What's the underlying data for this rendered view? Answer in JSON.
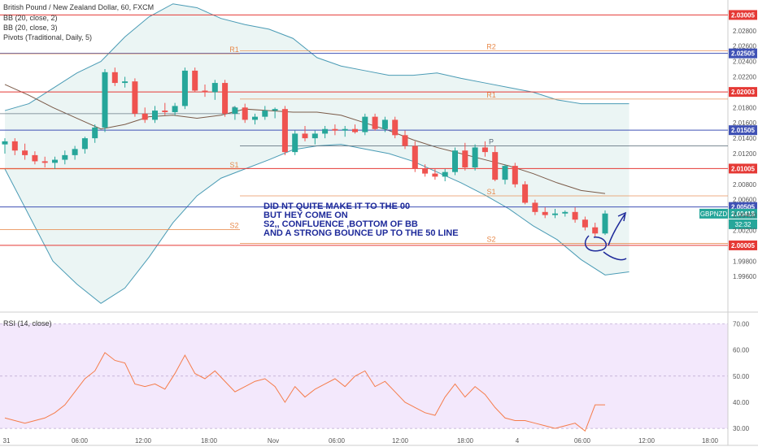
{
  "legend": {
    "symbol": "British Pound / New Zealand Dollar, 60, FXCM",
    "bb1": "BB (20, close, 2)",
    "bb2": "BB (20, close, 3)",
    "pivots": "Pivots (Traditional, Daily, 5)",
    "rsi": "RSI (14, close)"
  },
  "annotation": [
    "DID NT QUITE MAKE IT TO THE 00",
    "BUT HEY COME ON",
    "S2,, CONFLUENCE ,BOTTOM OF BB",
    "AND A STRONG BOUNCE UP TO THE 50 LINE"
  ],
  "colors": {
    "bull": "#26a69a",
    "bear": "#ef5350",
    "red_line": "#e53935",
    "blue_line": "#3f51b5",
    "pivot": "#e8894a",
    "bb_band": "#4a9bb5",
    "bb_fill": "#e6f3f1",
    "ma": "#7a5a48",
    "rsi_line": "#f57c4a",
    "rsi_bg": "#f3e8fc"
  },
  "chart_data": [
    {
      "type": "candlestick",
      "symbol": "GBPNZD",
      "ylim": [
        1.992,
        2.032
      ],
      "yticks": [
        1.996,
        1.998,
        2.002,
        2.004,
        2.006,
        2.008,
        2.012,
        2.014,
        2.016,
        2.018,
        2.022,
        2.024,
        2.026,
        2.028
      ],
      "x_labels": [
        "31",
        "06:00",
        "12:00",
        "18:00",
        "Nov",
        "06:00",
        "12:00",
        "18:00",
        "4",
        "06:00",
        "12:00",
        "18:00"
      ],
      "current_price": "2.00418",
      "price_tag_label": "GBPNZD",
      "countdown": "32:32",
      "horizontal_lines": [
        {
          "value": 2.03005,
          "label": "2.03005",
          "color": "red"
        },
        {
          "value": 2.02505,
          "label": "2.02505",
          "color": "blue"
        },
        {
          "value": 2.02003,
          "label": "2.02003",
          "color": "red"
        },
        {
          "value": 2.01505,
          "label": "2.01505",
          "color": "blue"
        },
        {
          "value": 2.01005,
          "label": "2.01005",
          "color": "red"
        },
        {
          "value": 2.00505,
          "label": "2.00505",
          "color": "blue"
        },
        {
          "value": 2.00005,
          "label": "2.00005",
          "color": "red"
        }
      ],
      "pivots": [
        {
          "label": "R1",
          "value": 2.025,
          "day": 1
        },
        {
          "label": "P",
          "value": 2.0172,
          "day": 1
        },
        {
          "label": "S1",
          "value": 2.01,
          "day": 1
        },
        {
          "label": "S2",
          "value": 2.0021,
          "day": 1
        },
        {
          "label": "R2",
          "value": 2.0254,
          "day": 2
        },
        {
          "label": "R1",
          "value": 2.0191,
          "day": 2
        },
        {
          "label": "P",
          "value": 2.013,
          "day": 2
        },
        {
          "label": "S1",
          "value": 2.0065,
          "day": 2
        },
        {
          "label": "S2",
          "value": 2.0003,
          "day": 2
        }
      ],
      "candles": [
        {
          "o": 2.0132,
          "h": 2.014,
          "l": 2.012,
          "c": 2.0136
        },
        {
          "o": 2.0136,
          "h": 2.014,
          "l": 2.0118,
          "c": 2.0124
        },
        {
          "o": 2.0124,
          "h": 2.0133,
          "l": 2.0112,
          "c": 2.0118
        },
        {
          "o": 2.0118,
          "h": 2.0123,
          "l": 2.0106,
          "c": 2.011
        },
        {
          "o": 2.011,
          "h": 2.0116,
          "l": 2.0102,
          "c": 2.0108
        },
        {
          "o": 2.0108,
          "h": 2.0116,
          "l": 2.01,
          "c": 2.0112
        },
        {
          "o": 2.0112,
          "h": 2.0124,
          "l": 2.0106,
          "c": 2.0118
        },
        {
          "o": 2.0118,
          "h": 2.013,
          "l": 2.0112,
          "c": 2.0126
        },
        {
          "o": 2.0126,
          "h": 2.0142,
          "l": 2.012,
          "c": 2.014
        },
        {
          "o": 2.014,
          "h": 2.0158,
          "l": 2.0134,
          "c": 2.0154
        },
        {
          "o": 2.0154,
          "h": 2.023,
          "l": 2.0148,
          "c": 2.0226
        },
        {
          "o": 2.0226,
          "h": 2.0232,
          "l": 2.0208,
          "c": 2.0212
        },
        {
          "o": 2.0212,
          "h": 2.022,
          "l": 2.0206,
          "c": 2.0214
        },
        {
          "o": 2.0214,
          "h": 2.0218,
          "l": 2.0168,
          "c": 2.0172
        },
        {
          "o": 2.0172,
          "h": 2.018,
          "l": 2.016,
          "c": 2.0164
        },
        {
          "o": 2.0164,
          "h": 2.0182,
          "l": 2.016,
          "c": 2.0176
        },
        {
          "o": 2.0176,
          "h": 2.0186,
          "l": 2.017,
          "c": 2.0174
        },
        {
          "o": 2.0174,
          "h": 2.0186,
          "l": 2.017,
          "c": 2.0182
        },
        {
          "o": 2.0182,
          "h": 2.0232,
          "l": 2.0178,
          "c": 2.0228
        },
        {
          "o": 2.0228,
          "h": 2.0232,
          "l": 2.02,
          "c": 2.0202
        },
        {
          "o": 2.0202,
          "h": 2.021,
          "l": 2.0194,
          "c": 2.02
        },
        {
          "o": 2.02,
          "h": 2.0216,
          "l": 2.019,
          "c": 2.0212
        },
        {
          "o": 2.0212,
          "h": 2.0216,
          "l": 2.0168,
          "c": 2.0172
        },
        {
          "o": 2.0172,
          "h": 2.0182,
          "l": 2.0164,
          "c": 2.018
        },
        {
          "o": 2.018,
          "h": 2.0185,
          "l": 2.016,
          "c": 2.0164
        },
        {
          "o": 2.0164,
          "h": 2.0172,
          "l": 2.0158,
          "c": 2.0168
        },
        {
          "o": 2.0168,
          "h": 2.0182,
          "l": 2.0164,
          "c": 2.0176
        },
        {
          "o": 2.0176,
          "h": 2.018,
          "l": 2.0166,
          "c": 2.0178
        },
        {
          "o": 2.0178,
          "h": 2.0182,
          "l": 2.0118,
          "c": 2.0122
        },
        {
          "o": 2.0122,
          "h": 2.015,
          "l": 2.0118,
          "c": 2.0146
        },
        {
          "o": 2.0146,
          "h": 2.0156,
          "l": 2.0136,
          "c": 2.014
        },
        {
          "o": 2.014,
          "h": 2.015,
          "l": 2.0132,
          "c": 2.0146
        },
        {
          "o": 2.0146,
          "h": 2.0156,
          "l": 2.014,
          "c": 2.0152
        },
        {
          "o": 2.0152,
          "h": 2.0158,
          "l": 2.0144,
          "c": 2.015
        },
        {
          "o": 2.015,
          "h": 2.0156,
          "l": 2.0142,
          "c": 2.0152
        },
        {
          "o": 2.0152,
          "h": 2.0158,
          "l": 2.0146,
          "c": 2.0148
        },
        {
          "o": 2.0148,
          "h": 2.0172,
          "l": 2.0144,
          "c": 2.0168
        },
        {
          "o": 2.0168,
          "h": 2.0172,
          "l": 2.015,
          "c": 2.0152
        },
        {
          "o": 2.0152,
          "h": 2.0168,
          "l": 2.0148,
          "c": 2.0164
        },
        {
          "o": 2.0164,
          "h": 2.0168,
          "l": 2.014,
          "c": 2.0144
        },
        {
          "o": 2.0144,
          "h": 2.015,
          "l": 2.0126,
          "c": 2.013
        },
        {
          "o": 2.013,
          "h": 2.0136,
          "l": 2.0096,
          "c": 2.01
        },
        {
          "o": 2.01,
          "h": 2.0106,
          "l": 2.009,
          "c": 2.0094
        },
        {
          "o": 2.0094,
          "h": 2.01,
          "l": 2.0086,
          "c": 2.009
        },
        {
          "o": 2.009,
          "h": 2.01,
          "l": 2.0084,
          "c": 2.0096
        },
        {
          "o": 2.0096,
          "h": 2.0128,
          "l": 2.0092,
          "c": 2.0124
        },
        {
          "o": 2.0124,
          "h": 2.0134,
          "l": 2.0098,
          "c": 2.0102
        },
        {
          "o": 2.0102,
          "h": 2.0132,
          "l": 2.0098,
          "c": 2.0128
        },
        {
          "o": 2.0128,
          "h": 2.0136,
          "l": 2.0116,
          "c": 2.0122
        },
        {
          "o": 2.0122,
          "h": 2.013,
          "l": 2.0084,
          "c": 2.0086
        },
        {
          "o": 2.0086,
          "h": 2.0106,
          "l": 2.008,
          "c": 2.0104
        },
        {
          "o": 2.0104,
          "h": 2.0108,
          "l": 2.0076,
          "c": 2.008
        },
        {
          "o": 2.008,
          "h": 2.0084,
          "l": 2.0054,
          "c": 2.0056
        },
        {
          "o": 2.0056,
          "h": 2.006,
          "l": 2.004,
          "c": 2.0044
        },
        {
          "o": 2.0044,
          "h": 2.005,
          "l": 2.0036,
          "c": 2.004
        },
        {
          "o": 2.004,
          "h": 2.0048,
          "l": 2.0036,
          "c": 2.0042
        },
        {
          "o": 2.0042,
          "h": 2.0046,
          "l": 2.0038,
          "c": 2.0044
        },
        {
          "o": 2.0044,
          "h": 2.005,
          "l": 2.003,
          "c": 2.0034
        },
        {
          "o": 2.0034,
          "h": 2.0038,
          "l": 2.002,
          "c": 2.0024
        },
        {
          "o": 2.0024,
          "h": 2.003,
          "l": 2.0012,
          "c": 2.0016
        },
        {
          "o": 2.0016,
          "h": 2.0046,
          "l": 2.0014,
          "c": 2.0042
        }
      ],
      "bb_upper": [
        2.0176,
        2.0185,
        2.0205,
        2.0225,
        2.024,
        2.0272,
        2.0298,
        2.0315,
        2.031,
        2.0296,
        2.0288,
        2.0282,
        2.027,
        2.0245,
        2.0234,
        2.0228,
        2.0222,
        2.0222,
        2.0225,
        2.0218,
        2.0212,
        2.0206,
        2.02,
        2.019,
        2.0185,
        2.0185,
        2.0185
      ],
      "bb_lower": [
        2.01,
        2.004,
        1.998,
        1.995,
        1.9925,
        1.9945,
        1.9985,
        2.003,
        2.0065,
        2.0088,
        2.01,
        2.0112,
        2.0125,
        2.013,
        2.0132,
        2.0126,
        2.012,
        2.011,
        2.0096,
        2.0082,
        2.0066,
        2.0048,
        2.0026,
        2.0008,
        1.9982,
        1.9962,
        1.9966
      ],
      "ma20": [
        2.021,
        2.0196,
        2.018,
        2.0166,
        2.0152,
        2.0158,
        2.0168,
        2.017,
        2.0166,
        2.017,
        2.0178,
        2.0176,
        2.0174,
        2.0174,
        2.017,
        2.016,
        2.015,
        2.0138,
        2.0128,
        2.012,
        2.0112,
        2.0104,
        2.0094,
        2.0082,
        2.0072,
        2.0068
      ],
      "band_x_step_bars": 2.4
    },
    {
      "type": "line",
      "title": "RSI (14, close)",
      "ylim": [
        26,
        72
      ],
      "yticks": [
        30.0,
        40.0,
        50.0,
        60.0,
        70.0
      ],
      "values": [
        34,
        33,
        32,
        33,
        34,
        36,
        39,
        44,
        49,
        52,
        59,
        56,
        55,
        47,
        46,
        47,
        45,
        51,
        58,
        51,
        49,
        52,
        48,
        44,
        46,
        48,
        49,
        46,
        40,
        46,
        42,
        45,
        47,
        49,
        46,
        50,
        52,
        46,
        48,
        44,
        40,
        38,
        36,
        35,
        42,
        47,
        42,
        46,
        43,
        38,
        34,
        33,
        33,
        32,
        31,
        30,
        31,
        32,
        29,
        39,
        39
      ]
    }
  ]
}
